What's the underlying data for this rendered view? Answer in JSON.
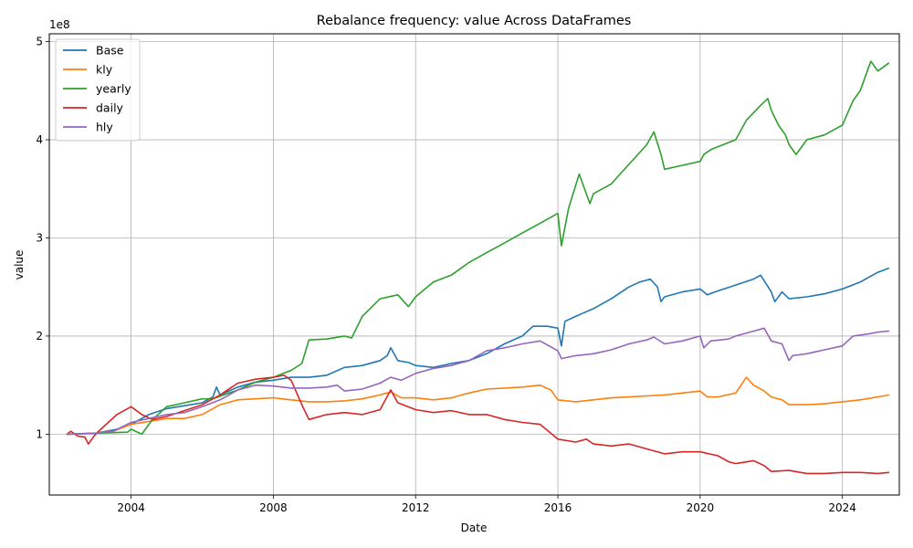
{
  "chart_data": {
    "type": "line",
    "title": "Rebalance frequency: value Across DataFrames",
    "xlabel": "Date",
    "ylabel": "value",
    "y_multiplier_label": "1e8",
    "xlim": [
      2001.7,
      2025.6
    ],
    "ylim": [
      0.38,
      5.08
    ],
    "x_ticks": [
      2004,
      2008,
      2012,
      2016,
      2020,
      2024
    ],
    "y_ticks": [
      1,
      2,
      3,
      4,
      5
    ],
    "grid": true,
    "legend_position": "top-left",
    "series": [
      {
        "name": "Base",
        "color": "#1f77b4",
        "points": [
          [
            2002.2,
            1.0
          ],
          [
            2003.0,
            1.01
          ],
          [
            2003.6,
            1.05
          ],
          [
            2004.0,
            1.1
          ],
          [
            2004.5,
            1.2
          ],
          [
            2005.0,
            1.26
          ],
          [
            2005.5,
            1.29
          ],
          [
            2006.0,
            1.32
          ],
          [
            2006.3,
            1.38
          ],
          [
            2006.4,
            1.48
          ],
          [
            2006.5,
            1.4
          ],
          [
            2007.0,
            1.48
          ],
          [
            2007.5,
            1.53
          ],
          [
            2008.0,
            1.55
          ],
          [
            2008.5,
            1.58
          ],
          [
            2009.0,
            1.58
          ],
          [
            2009.5,
            1.6
          ],
          [
            2010.0,
            1.68
          ],
          [
            2010.5,
            1.7
          ],
          [
            2011.0,
            1.75
          ],
          [
            2011.2,
            1.8
          ],
          [
            2011.3,
            1.88
          ],
          [
            2011.5,
            1.75
          ],
          [
            2011.8,
            1.73
          ],
          [
            2012.0,
            1.7
          ],
          [
            2012.5,
            1.68
          ],
          [
            2013.0,
            1.72
          ],
          [
            2013.5,
            1.75
          ],
          [
            2014.0,
            1.82
          ],
          [
            2014.5,
            1.92
          ],
          [
            2015.0,
            2.0
          ],
          [
            2015.3,
            2.1
          ],
          [
            2015.7,
            2.1
          ],
          [
            2016.0,
            2.08
          ],
          [
            2016.1,
            1.9
          ],
          [
            2016.2,
            2.15
          ],
          [
            2016.5,
            2.2
          ],
          [
            2017.0,
            2.28
          ],
          [
            2017.5,
            2.38
          ],
          [
            2018.0,
            2.5
          ],
          [
            2018.3,
            2.55
          ],
          [
            2018.6,
            2.58
          ],
          [
            2018.8,
            2.5
          ],
          [
            2018.9,
            2.35
          ],
          [
            2019.0,
            2.4
          ],
          [
            2019.5,
            2.45
          ],
          [
            2020.0,
            2.48
          ],
          [
            2020.2,
            2.42
          ],
          [
            2020.5,
            2.46
          ],
          [
            2021.0,
            2.52
          ],
          [
            2021.5,
            2.58
          ],
          [
            2021.7,
            2.62
          ],
          [
            2022.0,
            2.45
          ],
          [
            2022.1,
            2.35
          ],
          [
            2022.3,
            2.45
          ],
          [
            2022.5,
            2.38
          ],
          [
            2023.0,
            2.4
          ],
          [
            2023.5,
            2.43
          ],
          [
            2024.0,
            2.48
          ],
          [
            2024.5,
            2.55
          ],
          [
            2025.0,
            2.65
          ],
          [
            2025.3,
            2.69
          ]
        ]
      },
      {
        "name": "kly",
        "color": "#ff7f0e",
        "points": [
          [
            2002.2,
            1.0
          ],
          [
            2003.0,
            1.01
          ],
          [
            2003.5,
            1.03
          ],
          [
            2004.0,
            1.1
          ],
          [
            2004.5,
            1.13
          ],
          [
            2005.0,
            1.16
          ],
          [
            2005.5,
            1.16
          ],
          [
            2006.0,
            1.2
          ],
          [
            2006.5,
            1.3
          ],
          [
            2007.0,
            1.35
          ],
          [
            2007.5,
            1.36
          ],
          [
            2008.0,
            1.37
          ],
          [
            2008.5,
            1.35
          ],
          [
            2009.0,
            1.33
          ],
          [
            2009.5,
            1.33
          ],
          [
            2010.0,
            1.34
          ],
          [
            2010.5,
            1.36
          ],
          [
            2011.0,
            1.4
          ],
          [
            2011.3,
            1.43
          ],
          [
            2011.6,
            1.37
          ],
          [
            2012.0,
            1.37
          ],
          [
            2012.5,
            1.35
          ],
          [
            2013.0,
            1.37
          ],
          [
            2013.5,
            1.42
          ],
          [
            2014.0,
            1.46
          ],
          [
            2014.5,
            1.47
          ],
          [
            2015.0,
            1.48
          ],
          [
            2015.5,
            1.5
          ],
          [
            2015.8,
            1.45
          ],
          [
            2016.0,
            1.35
          ],
          [
            2016.5,
            1.33
          ],
          [
            2017.0,
            1.35
          ],
          [
            2017.5,
            1.37
          ],
          [
            2018.0,
            1.38
          ],
          [
            2018.5,
            1.39
          ],
          [
            2019.0,
            1.4
          ],
          [
            2019.5,
            1.42
          ],
          [
            2020.0,
            1.44
          ],
          [
            2020.2,
            1.38
          ],
          [
            2020.5,
            1.38
          ],
          [
            2021.0,
            1.42
          ],
          [
            2021.3,
            1.58
          ],
          [
            2021.5,
            1.5
          ],
          [
            2021.8,
            1.44
          ],
          [
            2022.0,
            1.38
          ],
          [
            2022.3,
            1.35
          ],
          [
            2022.5,
            1.3
          ],
          [
            2023.0,
            1.3
          ],
          [
            2023.5,
            1.31
          ],
          [
            2024.0,
            1.33
          ],
          [
            2024.5,
            1.35
          ],
          [
            2025.0,
            1.38
          ],
          [
            2025.3,
            1.4
          ]
        ]
      },
      {
        "name": "yearly",
        "color": "#2ca02c",
        "points": [
          [
            2002.2,
            1.0
          ],
          [
            2003.0,
            1.01
          ],
          [
            2003.9,
            1.02
          ],
          [
            2004.0,
            1.05
          ],
          [
            2004.3,
            1.0
          ],
          [
            2004.6,
            1.15
          ],
          [
            2005.0,
            1.28
          ],
          [
            2005.5,
            1.32
          ],
          [
            2006.0,
            1.36
          ],
          [
            2006.3,
            1.36
          ],
          [
            2006.6,
            1.4
          ],
          [
            2007.0,
            1.45
          ],
          [
            2007.5,
            1.53
          ],
          [
            2008.0,
            1.58
          ],
          [
            2008.5,
            1.65
          ],
          [
            2008.8,
            1.72
          ],
          [
            2009.0,
            1.96
          ],
          [
            2009.5,
            1.97
          ],
          [
            2010.0,
            2.0
          ],
          [
            2010.2,
            1.98
          ],
          [
            2010.5,
            2.2
          ],
          [
            2011.0,
            2.38
          ],
          [
            2011.5,
            2.42
          ],
          [
            2011.8,
            2.3
          ],
          [
            2012.0,
            2.4
          ],
          [
            2012.5,
            2.55
          ],
          [
            2013.0,
            2.62
          ],
          [
            2013.5,
            2.75
          ],
          [
            2014.0,
            2.85
          ],
          [
            2014.5,
            2.95
          ],
          [
            2015.0,
            3.05
          ],
          [
            2015.5,
            3.15
          ],
          [
            2016.0,
            3.25
          ],
          [
            2016.1,
            2.92
          ],
          [
            2016.3,
            3.3
          ],
          [
            2016.6,
            3.65
          ],
          [
            2016.9,
            3.35
          ],
          [
            2017.0,
            3.45
          ],
          [
            2017.5,
            3.55
          ],
          [
            2018.0,
            3.75
          ],
          [
            2018.5,
            3.95
          ],
          [
            2018.7,
            4.08
          ],
          [
            2018.9,
            3.85
          ],
          [
            2019.0,
            3.7
          ],
          [
            2019.5,
            3.74
          ],
          [
            2020.0,
            3.78
          ],
          [
            2020.1,
            3.85
          ],
          [
            2020.3,
            3.9
          ],
          [
            2021.0,
            4.0
          ],
          [
            2021.3,
            4.2
          ],
          [
            2021.7,
            4.35
          ],
          [
            2021.9,
            4.42
          ],
          [
            2022.0,
            4.3
          ],
          [
            2022.2,
            4.15
          ],
          [
            2022.4,
            4.05
          ],
          [
            2022.5,
            3.95
          ],
          [
            2022.7,
            3.85
          ],
          [
            2023.0,
            4.0
          ],
          [
            2023.5,
            4.05
          ],
          [
            2024.0,
            4.15
          ],
          [
            2024.3,
            4.4
          ],
          [
            2024.5,
            4.5
          ],
          [
            2024.8,
            4.8
          ],
          [
            2025.0,
            4.7
          ],
          [
            2025.3,
            4.78
          ]
        ]
      },
      {
        "name": "daily",
        "color": "#d62728",
        "points": [
          [
            2002.2,
            1.0
          ],
          [
            2002.3,
            1.03
          ],
          [
            2002.5,
            0.98
          ],
          [
            2002.7,
            0.97
          ],
          [
            2002.8,
            0.9
          ],
          [
            2003.0,
            1.0
          ],
          [
            2003.3,
            1.1
          ],
          [
            2003.6,
            1.2
          ],
          [
            2004.0,
            1.28
          ],
          [
            2004.3,
            1.2
          ],
          [
            2004.6,
            1.15
          ],
          [
            2005.0,
            1.18
          ],
          [
            2005.5,
            1.24
          ],
          [
            2006.0,
            1.3
          ],
          [
            2006.5,
            1.4
          ],
          [
            2007.0,
            1.52
          ],
          [
            2007.5,
            1.56
          ],
          [
            2008.0,
            1.58
          ],
          [
            2008.3,
            1.6
          ],
          [
            2008.5,
            1.55
          ],
          [
            2008.8,
            1.3
          ],
          [
            2009.0,
            1.15
          ],
          [
            2009.5,
            1.2
          ],
          [
            2010.0,
            1.22
          ],
          [
            2010.5,
            1.2
          ],
          [
            2011.0,
            1.25
          ],
          [
            2011.3,
            1.45
          ],
          [
            2011.5,
            1.32
          ],
          [
            2012.0,
            1.25
          ],
          [
            2012.5,
            1.22
          ],
          [
            2013.0,
            1.24
          ],
          [
            2013.5,
            1.2
          ],
          [
            2014.0,
            1.2
          ],
          [
            2014.5,
            1.15
          ],
          [
            2015.0,
            1.12
          ],
          [
            2015.5,
            1.1
          ],
          [
            2016.0,
            0.95
          ],
          [
            2016.5,
            0.92
          ],
          [
            2016.8,
            0.95
          ],
          [
            2017.0,
            0.9
          ],
          [
            2017.5,
            0.88
          ],
          [
            2018.0,
            0.9
          ],
          [
            2018.5,
            0.85
          ],
          [
            2019.0,
            0.8
          ],
          [
            2019.5,
            0.82
          ],
          [
            2020.0,
            0.82
          ],
          [
            2020.5,
            0.78
          ],
          [
            2020.8,
            0.72
          ],
          [
            2021.0,
            0.7
          ],
          [
            2021.5,
            0.73
          ],
          [
            2021.8,
            0.68
          ],
          [
            2022.0,
            0.62
          ],
          [
            2022.5,
            0.63
          ],
          [
            2023.0,
            0.6
          ],
          [
            2023.5,
            0.6
          ],
          [
            2024.0,
            0.61
          ],
          [
            2024.5,
            0.61
          ],
          [
            2025.0,
            0.6
          ],
          [
            2025.3,
            0.61
          ]
        ]
      },
      {
        "name": "hly",
        "color": "#9467bd",
        "points": [
          [
            2002.2,
            1.0
          ],
          [
            2003.0,
            1.01
          ],
          [
            2003.5,
            1.03
          ],
          [
            2004.0,
            1.12
          ],
          [
            2004.5,
            1.16
          ],
          [
            2005.0,
            1.2
          ],
          [
            2005.5,
            1.22
          ],
          [
            2006.0,
            1.28
          ],
          [
            2006.5,
            1.35
          ],
          [
            2007.0,
            1.45
          ],
          [
            2007.5,
            1.5
          ],
          [
            2008.0,
            1.49
          ],
          [
            2008.5,
            1.47
          ],
          [
            2009.0,
            1.47
          ],
          [
            2009.5,
            1.48
          ],
          [
            2009.8,
            1.5
          ],
          [
            2010.0,
            1.44
          ],
          [
            2010.5,
            1.46
          ],
          [
            2011.0,
            1.52
          ],
          [
            2011.3,
            1.58
          ],
          [
            2011.6,
            1.55
          ],
          [
            2012.0,
            1.62
          ],
          [
            2012.5,
            1.67
          ],
          [
            2013.0,
            1.7
          ],
          [
            2013.5,
            1.75
          ],
          [
            2014.0,
            1.85
          ],
          [
            2014.5,
            1.88
          ],
          [
            2015.0,
            1.92
          ],
          [
            2015.5,
            1.95
          ],
          [
            2016.0,
            1.85
          ],
          [
            2016.1,
            1.77
          ],
          [
            2016.5,
            1.8
          ],
          [
            2017.0,
            1.82
          ],
          [
            2017.5,
            1.86
          ],
          [
            2018.0,
            1.92
          ],
          [
            2018.5,
            1.96
          ],
          [
            2018.7,
            1.99
          ],
          [
            2019.0,
            1.92
          ],
          [
            2019.5,
            1.95
          ],
          [
            2020.0,
            2.0
          ],
          [
            2020.1,
            1.88
          ],
          [
            2020.3,
            1.95
          ],
          [
            2020.8,
            1.97
          ],
          [
            2021.0,
            2.0
          ],
          [
            2021.5,
            2.05
          ],
          [
            2021.8,
            2.08
          ],
          [
            2022.0,
            1.95
          ],
          [
            2022.3,
            1.92
          ],
          [
            2022.5,
            1.75
          ],
          [
            2022.6,
            1.8
          ],
          [
            2023.0,
            1.82
          ],
          [
            2023.5,
            1.86
          ],
          [
            2024.0,
            1.9
          ],
          [
            2024.3,
            2.0
          ],
          [
            2024.7,
            2.02
          ],
          [
            2025.0,
            2.04
          ],
          [
            2025.3,
            2.05
          ]
        ]
      }
    ]
  }
}
